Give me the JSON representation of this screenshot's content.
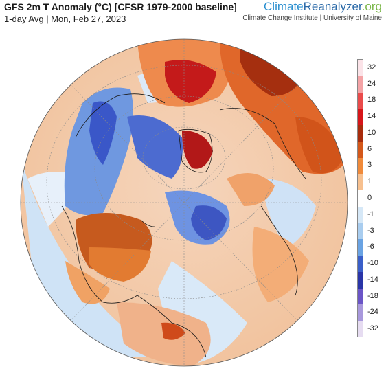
{
  "header": {
    "title": "GFS 2m T Anomaly (°C) [CFSR 1979-2000 baseline]",
    "subtitle": "1-day Avg | Mon, Feb 27, 2023"
  },
  "brand": {
    "part1": "Climate",
    "part2": "Reanalyzer",
    "part3": ".org",
    "institution": "Climate Change Institute | University of Maine"
  },
  "legend": {
    "labels": [
      "32",
      "24",
      "18",
      "14",
      "10",
      "6",
      "3",
      "1",
      "0",
      "-1",
      "-3",
      "-6",
      "-10",
      "-14",
      "-18",
      "-24",
      "-32"
    ],
    "colors": [
      "#fbe3e8",
      "#f4a3a6",
      "#ea4b4b",
      "#d7161a",
      "#a82c0c",
      "#d4581a",
      "#f08a3a",
      "#f7c08f",
      "#ffffff",
      "#d6e8f7",
      "#a9cdef",
      "#6aa3e3",
      "#3a5fc9",
      "#2a35a8",
      "#6b55c7",
      "#a898dc",
      "#e6dcf1"
    ],
    "colors_note": ""
  },
  "map": {
    "projection": "orthographic north-polar view",
    "dominant_colors": {
      "warm": "#e0672a",
      "hot": "#d41d1d",
      "cold": "#3450c6",
      "mild": "#b8d6f2",
      "ocean_warm": "#f7b482"
    }
  }
}
